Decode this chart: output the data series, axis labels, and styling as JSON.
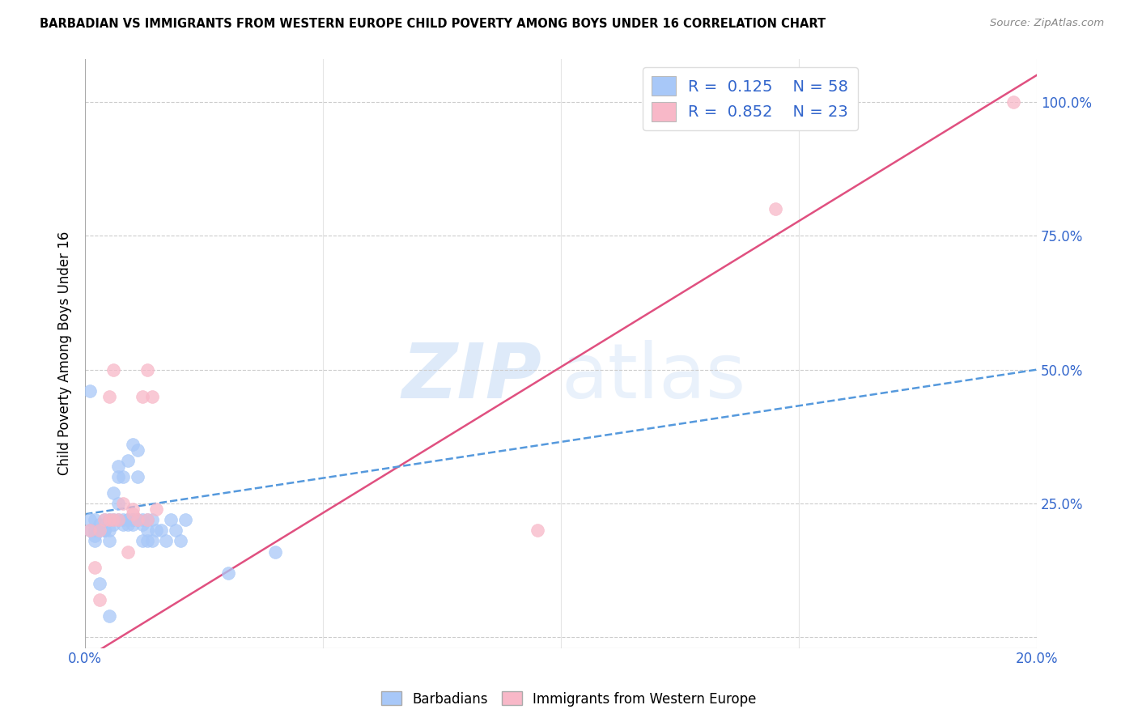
{
  "title": "BARBADIAN VS IMMIGRANTS FROM WESTERN EUROPE CHILD POVERTY AMONG BOYS UNDER 16 CORRELATION CHART",
  "source": "Source: ZipAtlas.com",
  "ylabel": "Child Poverty Among Boys Under 16",
  "xlim": [
    0.0,
    0.2
  ],
  "ylim": [
    -0.02,
    1.08
  ],
  "plot_ylim": [
    -0.02,
    1.08
  ],
  "x_ticks": [
    0.0,
    0.05,
    0.1,
    0.15,
    0.2
  ],
  "x_tick_labels": [
    "0.0%",
    "",
    "",
    "",
    "20.0%"
  ],
  "y_ticks": [
    0.0,
    0.25,
    0.5,
    0.75,
    1.0
  ],
  "y_tick_labels_right": [
    "",
    "25.0%",
    "50.0%",
    "75.0%",
    "100.0%"
  ],
  "barbadian_R": 0.125,
  "barbadian_N": 58,
  "western_europe_R": 0.852,
  "western_europe_N": 23,
  "barbadian_color": "#a8c8f8",
  "western_europe_color": "#f8b8c8",
  "trend_barbadian_color": "#5599dd",
  "trend_western_europe_color": "#e05080",
  "barbadian_x": [
    0.001,
    0.001,
    0.001,
    0.002,
    0.002,
    0.002,
    0.002,
    0.003,
    0.003,
    0.003,
    0.003,
    0.004,
    0.004,
    0.004,
    0.004,
    0.005,
    0.005,
    0.005,
    0.005,
    0.006,
    0.006,
    0.006,
    0.007,
    0.007,
    0.007,
    0.007,
    0.008,
    0.008,
    0.008,
    0.009,
    0.009,
    0.009,
    0.009,
    0.01,
    0.01,
    0.01,
    0.01,
    0.01,
    0.011,
    0.011,
    0.011,
    0.012,
    0.012,
    0.012,
    0.013,
    0.013,
    0.013,
    0.014,
    0.014,
    0.015,
    0.016,
    0.017,
    0.018,
    0.019,
    0.02,
    0.021,
    0.03,
    0.04
  ],
  "barbadian_y": [
    0.46,
    0.22,
    0.2,
    0.2,
    0.22,
    0.19,
    0.18,
    0.21,
    0.2,
    0.2,
    0.1,
    0.22,
    0.2,
    0.2,
    0.2,
    0.22,
    0.2,
    0.18,
    0.04,
    0.27,
    0.22,
    0.21,
    0.32,
    0.3,
    0.25,
    0.22,
    0.3,
    0.22,
    0.21,
    0.22,
    0.22,
    0.21,
    0.33,
    0.36,
    0.22,
    0.22,
    0.22,
    0.21,
    0.35,
    0.3,
    0.22,
    0.22,
    0.21,
    0.18,
    0.22,
    0.2,
    0.18,
    0.18,
    0.22,
    0.2,
    0.2,
    0.18,
    0.22,
    0.2,
    0.18,
    0.22,
    0.12,
    0.16
  ],
  "western_europe_x": [
    0.001,
    0.002,
    0.003,
    0.003,
    0.004,
    0.005,
    0.005,
    0.006,
    0.006,
    0.007,
    0.008,
    0.009,
    0.01,
    0.01,
    0.011,
    0.012,
    0.013,
    0.013,
    0.014,
    0.015,
    0.095,
    0.145,
    0.195
  ],
  "western_europe_y": [
    0.2,
    0.13,
    0.07,
    0.2,
    0.22,
    0.22,
    0.45,
    0.22,
    0.5,
    0.22,
    0.25,
    0.16,
    0.24,
    0.23,
    0.22,
    0.45,
    0.5,
    0.22,
    0.45,
    0.24,
    0.2,
    0.8,
    1.0
  ],
  "trend_b_x0": 0.0,
  "trend_b_y0": 0.23,
  "trend_b_x1": 0.2,
  "trend_b_y1": 0.5,
  "trend_w_x0": 0.0,
  "trend_w_y0": -0.04,
  "trend_w_x1": 0.2,
  "trend_w_y1": 1.05
}
